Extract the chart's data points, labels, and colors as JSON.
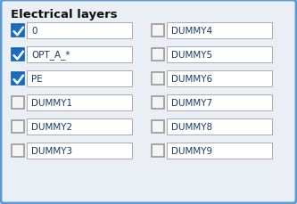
{
  "title": "Electrical layers",
  "title_fontsize": 9.5,
  "background_color": "#cdd8e8",
  "panel_color": "#eaeff5",
  "border_color": "#5b9bd5",
  "text_color": "#1a3a6b",
  "checkbox_checked_color": "#1a6fbd",
  "checkbox_unchecked_color": "#f5f5f5",
  "checkbox_border_color": "#999999",
  "field_bg": "#ffffff",
  "field_border": "#aaaaaa",
  "left_items": [
    {
      "label": "0",
      "checked": true
    },
    {
      "label": "OPT_A_*",
      "checked": true
    },
    {
      "label": "PE",
      "checked": true
    },
    {
      "label": "DUMMY1",
      "checked": false
    },
    {
      "label": "DUMMY2",
      "checked": false
    },
    {
      "label": "DUMMY3",
      "checked": false
    }
  ],
  "right_items": [
    {
      "label": "DUMMY4",
      "checked": false
    },
    {
      "label": "DUMMY5",
      "checked": false
    },
    {
      "label": "DUMMY6",
      "checked": false
    },
    {
      "label": "DUMMY7",
      "checked": false
    },
    {
      "label": "DUMMY8",
      "checked": false
    },
    {
      "label": "DUMMY9",
      "checked": false
    }
  ],
  "figsize": [
    3.33,
    2.3
  ],
  "dpi": 100
}
